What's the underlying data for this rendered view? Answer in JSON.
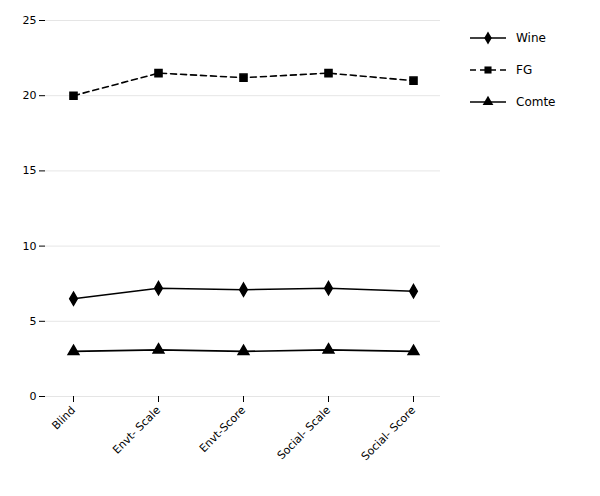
{
  "chart_data": {
    "type": "line",
    "categories": [
      "Blind",
      "Envt- Scale",
      "Envt-Score",
      "Social- Scale",
      "Social- Score"
    ],
    "series": [
      {
        "name": "Wine",
        "color": "#000000",
        "values": [
          6.5,
          7.2,
          7.1,
          7.2,
          7.0
        ],
        "marker": "diamond",
        "line_style": "solid"
      },
      {
        "name": "FG",
        "color": "#000000",
        "values": [
          20.0,
          21.5,
          21.2,
          21.5,
          21.0
        ],
        "marker": "square",
        "line_style": "dashed"
      },
      {
        "name": "Comte",
        "color": "#000000",
        "values": [
          3.0,
          3.1,
          3.0,
          3.1,
          3.0
        ],
        "marker": "triangle",
        "line_style": "solid"
      }
    ],
    "ylim": [
      0,
      25
    ],
    "yticks": [
      0,
      5,
      10,
      15,
      20,
      25
    ],
    "grid": true,
    "legend": "right"
  }
}
